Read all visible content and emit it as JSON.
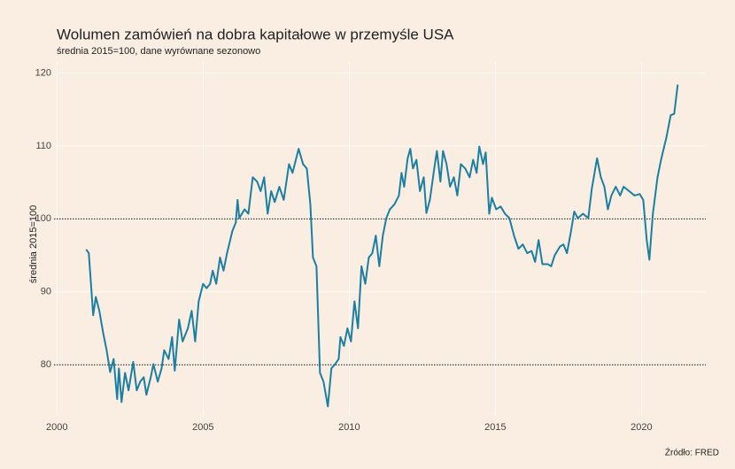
{
  "chart_data": {
    "type": "line",
    "title": "Wolumen zamówień na dobra kapitałowe w przemyśle USA",
    "subtitle": "średnia 2015=100, dane wyrównane sezonowo",
    "y_label": "średnia 2015=100",
    "source": "Źródło: FRED",
    "color": "#1b7fa3",
    "grid": true,
    "reference_lines": [
      80,
      100
    ],
    "xlim": [
      1999.9,
      2022.2
    ],
    "xticks": [
      2000,
      2005,
      2010,
      2015,
      2020
    ],
    "ylim": [
      73,
      121.5
    ],
    "yticks": [
      80,
      90,
      100,
      110,
      120
    ],
    "x": [
      2001.0,
      2001.09,
      2001.24,
      2001.33,
      2001.45,
      2001.58,
      2001.7,
      2001.82,
      2001.94,
      2002.06,
      2002.12,
      2002.21,
      2002.33,
      2002.45,
      2002.61,
      2002.73,
      2002.85,
      2002.97,
      2003.06,
      2003.21,
      2003.3,
      2003.45,
      2003.58,
      2003.67,
      2003.82,
      2003.94,
      2004.03,
      2004.18,
      2004.3,
      2004.48,
      2004.61,
      2004.73,
      2004.85,
      2005.0,
      2005.12,
      2005.24,
      2005.33,
      2005.45,
      2005.58,
      2005.7,
      2005.82,
      2006.0,
      2006.12,
      2006.18,
      2006.24,
      2006.42,
      2006.55,
      2006.7,
      2006.85,
      2006.97,
      2007.09,
      2007.21,
      2007.33,
      2007.45,
      2007.61,
      2007.76,
      2007.94,
      2008.06,
      2008.27,
      2008.42,
      2008.55,
      2008.67,
      2008.76,
      2008.88,
      2009.0,
      2009.12,
      2009.27,
      2009.39,
      2009.52,
      2009.64,
      2009.7,
      2009.82,
      2009.94,
      2010.06,
      2010.18,
      2010.3,
      2010.42,
      2010.55,
      2010.67,
      2010.79,
      2010.91,
      2011.03,
      2011.15,
      2011.27,
      2011.39,
      2011.55,
      2011.7,
      2011.79,
      2011.88,
      2012.0,
      2012.09,
      2012.18,
      2012.3,
      2012.42,
      2012.55,
      2012.64,
      2012.76,
      2012.91,
      2013.0,
      2013.12,
      2013.21,
      2013.33,
      2013.45,
      2013.58,
      2013.7,
      2013.82,
      2013.97,
      2014.12,
      2014.24,
      2014.36,
      2014.45,
      2014.58,
      2014.67,
      2014.79,
      2014.88,
      2015.03,
      2015.18,
      2015.33,
      2015.48,
      2015.64,
      2015.79,
      2015.94,
      2016.09,
      2016.24,
      2016.36,
      2016.48,
      2016.61,
      2016.79,
      2016.91,
      2017.03,
      2017.21,
      2017.33,
      2017.45,
      2017.58,
      2017.7,
      2017.82,
      2018.0,
      2018.18,
      2018.3,
      2018.48,
      2018.61,
      2018.73,
      2018.85,
      2018.97,
      2019.12,
      2019.27,
      2019.39,
      2019.58,
      2019.76,
      2019.94,
      2020.06,
      2020.18,
      2020.27,
      2020.39,
      2020.55,
      2020.67,
      2020.85,
      2021.0,
      2021.12,
      2021.24
    ],
    "values": [
      95.8,
      95.3,
      86.8,
      89.3,
      87.4,
      84.4,
      82,
      79,
      80.8,
      75.3,
      79.5,
      74.9,
      78.9,
      76.5,
      80.4,
      76.5,
      77.7,
      78.3,
      75.9,
      78.3,
      80.1,
      77.7,
      79.5,
      82,
      80.8,
      83.8,
      79.2,
      86.2,
      83.2,
      85,
      87.4,
      83.2,
      88.7,
      91.1,
      90.5,
      91.1,
      92.9,
      91.1,
      94.7,
      92.9,
      95.3,
      98.3,
      99.5,
      102.6,
      100.1,
      101.3,
      100.7,
      105.7,
      105.1,
      103.8,
      105.7,
      100.7,
      103.8,
      102.3,
      104.4,
      102.6,
      107.5,
      106.3,
      109.6,
      107.5,
      106.9,
      102.0,
      94.7,
      93.5,
      78.9,
      77.7,
      74.3,
      79.5,
      80.1,
      80.8,
      83.8,
      82.6,
      85,
      83.2,
      88.7,
      85,
      93.5,
      91.1,
      94.7,
      95.3,
      97.7,
      93.5,
      97.7,
      100.1,
      101.3,
      102.0,
      103.2,
      106.3,
      104.4,
      108.3,
      109.6,
      106.9,
      108.1,
      103.8,
      105.7,
      100.8,
      102.6,
      106.9,
      109.3,
      105.1,
      109.3,
      107.5,
      104.4,
      105.7,
      103.2,
      107.5,
      106.9,
      105.7,
      108.1,
      106.3,
      109.9,
      107.5,
      109.1,
      100.7,
      102.9,
      101.3,
      101.7,
      100.7,
      100.1,
      97.7,
      95.9,
      96.5,
      95.3,
      95.6,
      94.1,
      97.1,
      93.8,
      93.8,
      93.5,
      95.0,
      96.2,
      96.5,
      95.3,
      98.1,
      101.0,
      100.1,
      100.7,
      100.1,
      104.1,
      108.3,
      105.7,
      104.4,
      101.3,
      103.2,
      104.4,
      103.2,
      104.4,
      103.8,
      103.2,
      103.4,
      102.6,
      97.1,
      94.4,
      100.7,
      105.7,
      108.1,
      111.1,
      114.2,
      114.4,
      118.4
    ]
  }
}
